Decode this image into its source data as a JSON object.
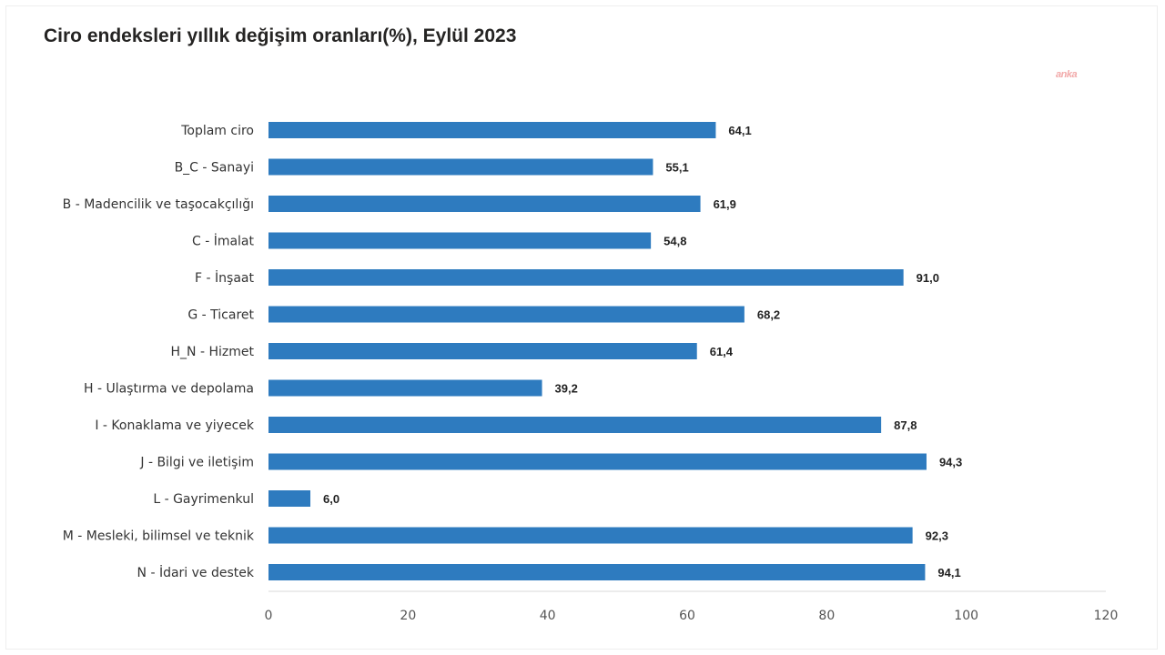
{
  "chart_data": {
    "type": "bar",
    "orientation": "horizontal",
    "title": "Ciro endeksleri yıllık değişim oranları(%), Eylül 2023",
    "categories": [
      "Toplam ciro",
      "B_C - Sanayi",
      "B - Madencilik ve taşocakçılığı",
      "C - İmalat",
      "F - İnşaat",
      "G - Ticaret",
      "H_N - Hizmet",
      "H - Ulaştırma ve depolama",
      "I - Konaklama ve yiyecek",
      "J - Bilgi ve iletişim",
      "L - Gayrimenkul",
      "M - Mesleki, bilimsel ve teknik",
      "N - İdari ve destek"
    ],
    "values": [
      64.1,
      55.1,
      61.9,
      54.8,
      91.0,
      68.2,
      61.4,
      39.2,
      87.8,
      94.3,
      6.0,
      92.3,
      94.1
    ],
    "value_labels": [
      "64,1",
      "55,1",
      "61,9",
      "54,8",
      "91,0",
      "68,2",
      "61,4",
      "39,2",
      "87,8",
      "94,3",
      "6,0",
      "92,3",
      "94,1"
    ],
    "xlim": [
      0,
      120
    ],
    "xticks": [
      0,
      20,
      40,
      60,
      80,
      100,
      120
    ],
    "xlabel": "",
    "ylabel": "",
    "grid": false,
    "legend": "none",
    "bar_color": "#2e7bbf"
  },
  "watermark": "anka"
}
